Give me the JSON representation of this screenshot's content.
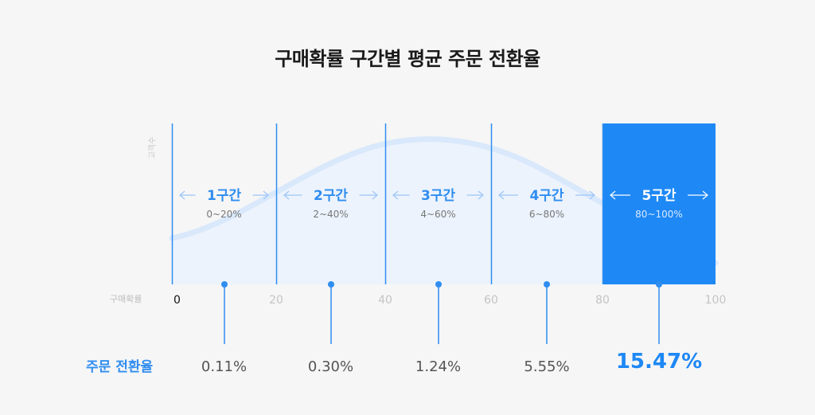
{
  "title": "구매확률 구간별 평균 주문 전환율",
  "chart_data": {
    "type": "bar",
    "ylabel": "고객수",
    "xlabel": "구매확률",
    "xlim": [
      0,
      100
    ],
    "x_ticks": [
      "0",
      "20",
      "40",
      "60",
      "80",
      "100"
    ],
    "series_label": "주문 전환율",
    "segments": [
      {
        "name": "1구간",
        "range": "0~20%",
        "rate": "0.11%",
        "highlighted": false
      },
      {
        "name": "2구간",
        "range": "2~40%",
        "rate": "0.30%",
        "highlighted": false
      },
      {
        "name": "3구간",
        "range": "4~60%",
        "rate": "1.24%",
        "highlighted": false
      },
      {
        "name": "4구간",
        "range": "6~80%",
        "rate": "5.55%",
        "highlighted": false
      },
      {
        "name": "5구간",
        "range": "80~100%",
        "rate": "15.47%",
        "highlighted": true
      }
    ],
    "values": [
      0.11,
      0.3,
      1.24,
      5.55,
      15.47
    ]
  },
  "colors": {
    "accent": "#1e88f5",
    "line": "#2f8df0",
    "curve": "#d9e8fb",
    "area": "#ecf3fd",
    "muted_text": "#777777",
    "tick_text": "#c4c4c4"
  }
}
